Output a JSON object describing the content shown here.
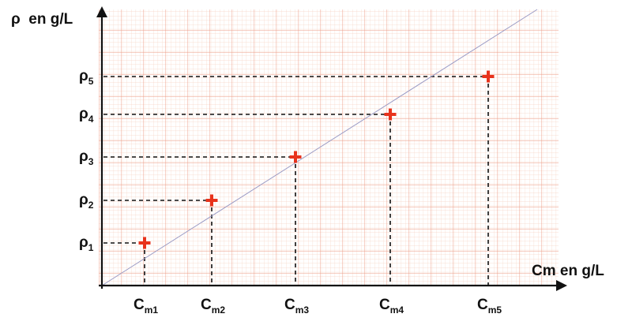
{
  "chart_data": {
    "type": "scatter",
    "xlabel": "Cm en g/L",
    "ylabel": "ρ  en g/L",
    "x_ticks": [
      {
        "main": "C",
        "sub": "m1"
      },
      {
        "main": "C",
        "sub": "m2"
      },
      {
        "main": "C",
        "sub": "m3"
      },
      {
        "main": "C",
        "sub": "m4"
      },
      {
        "main": "C",
        "sub": "m5"
      }
    ],
    "y_ticks": [
      {
        "main": "ρ",
        "sub": "1"
      },
      {
        "main": "ρ",
        "sub": "2"
      },
      {
        "main": "ρ",
        "sub": "3"
      },
      {
        "main": "ρ",
        "sub": "4"
      },
      {
        "main": "ρ",
        "sub": "5"
      }
    ],
    "points": [
      {
        "x": 1,
        "y": 1
      },
      {
        "x": 2,
        "y": 2
      },
      {
        "x": 3,
        "y": 3
      },
      {
        "x": 4,
        "y": 4
      },
      {
        "x": 5,
        "y": 5
      }
    ],
    "trendline": true,
    "grid": true,
    "colors": {
      "marker": "#e8331c",
      "trendline": "#9a9ac4",
      "grid_minor": "#f6d2c2",
      "grid_major": "#ee9e88",
      "axis": "#111111",
      "guide": "#111111"
    }
  }
}
